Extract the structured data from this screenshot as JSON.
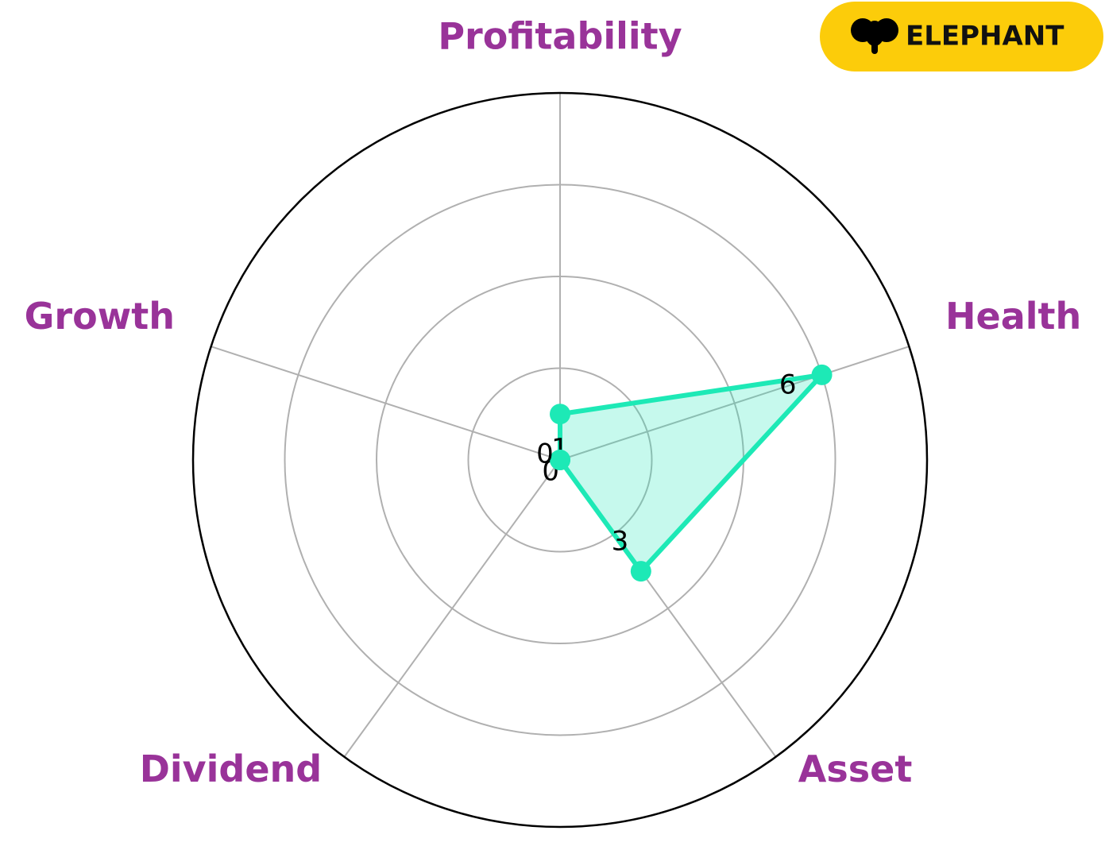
{
  "chart_data": {
    "type": "radar",
    "categories": [
      "Profitability",
      "Health",
      "Asset",
      "Dividend",
      "Growth"
    ],
    "values": [
      1,
      6,
      3,
      0,
      0
    ],
    "color": "#1de9b6",
    "label_color": "#993399",
    "ylim": [
      0,
      8
    ],
    "yticks": [
      2,
      4,
      6,
      8
    ],
    "ytick_labels": false,
    "grid": true
  },
  "logo": "ELEPHANT"
}
